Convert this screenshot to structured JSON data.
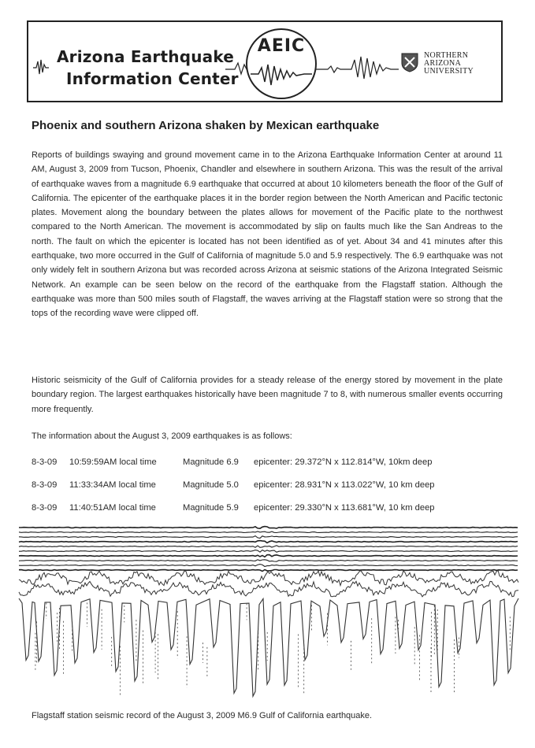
{
  "header": {
    "org_line1": "Arizona Earthquake",
    "org_line2": "Information Center",
    "logo_text": "AEIC",
    "university": [
      "NORTHERN",
      "ARIZONA",
      "UNIVERSITY"
    ]
  },
  "article": {
    "title": "Phoenix and southern Arizona shaken by Mexican earthquake",
    "paragraph1": "Reports of buildings swaying and ground movement came in to the Arizona Earthquake Information Center at around 11 AM, August 3, 2009 from Tucson, Phoenix, Chandler and elsewhere in southern Arizona. This was the result of the arrival of earthquake waves from a magnitude 6.9 earthquake that occurred at about 10 kilometers beneath the floor of the Gulf of California. The epicenter of the earthquake places it in the border region between the North American and Pacific tectonic plates. Movement along the boundary between the plates allows for movement of the Pacific plate to the northwest compared to the North American. The movement is accommodated by slip on faults much like the San Andreas to the north. The fault on which the epicenter is located has not been identified as of yet. About 34 and 41 minutes after this earthquake, two more occurred in the Gulf of California of magnitude 5.0 and 5.9 respectively. The 6.9 earthquake was not only widely felt in southern Arizona but was recorded across Arizona at seismic stations of the Arizona Integrated Seismic Network. An example can be seen below on the record of the earthquake from the Flagstaff station. Although the earthquake was more than 500 miles south of Flagstaff, the waves arriving at the Flagstaff station were so strong that the tops of the recording wave were clipped off.",
    "paragraph2": "Historic seismicity of the Gulf of California provides for a steady release of the energy stored by movement in the plate boundary region. The largest earthquakes historically have been magnitude 7 to 8, with numerous smaller events occurring more frequently.",
    "paragraph3": "The information about the August 3, 2009 earthquakes is as follows:"
  },
  "earthquakes": [
    {
      "date": "8-3-09",
      "time": "10:59:59AM local time",
      "magnitude": "Magnitude 6.9",
      "epicenter": "epicenter: 29.372°N x 112.814°W, 10km deep"
    },
    {
      "date": "8-3-09",
      "time": "11:33:34AM local time",
      "magnitude": "Magnitude 5.0",
      "epicenter": "epicenter: 28.931°N x 113.022°W, 10 km deep"
    },
    {
      "date": "8-3-09",
      "time": "11:40:51AM local time",
      "magnitude": "Magnitude 5.9",
      "epicenter": "epicenter: 29.330°N x 113.681°W, 10 km deep"
    }
  ],
  "figure": {
    "caption": "Flagstaff station seismic record of the August 3, 2009 M6.9 Gulf of California earthquake."
  }
}
